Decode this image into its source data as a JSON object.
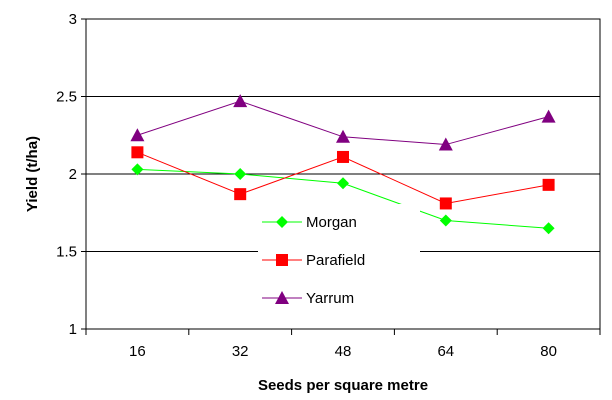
{
  "chart_data": {
    "type": "line",
    "categories": [
      "16",
      "32",
      "48",
      "64",
      "80"
    ],
    "series": [
      {
        "name": "Morgan",
        "values": [
          2.03,
          2.0,
          1.94,
          1.7,
          1.65
        ],
        "color": "#00ff00",
        "marker": "diamond"
      },
      {
        "name": "Parafield",
        "values": [
          2.14,
          1.87,
          2.11,
          1.81,
          1.93
        ],
        "color": "#ff0000",
        "marker": "square"
      },
      {
        "name": "Yarrum",
        "values": [
          2.25,
          2.47,
          2.24,
          2.19,
          2.37
        ],
        "color": "#800080",
        "marker": "triangle"
      }
    ],
    "xlabel": "Seeds per square metre",
    "ylabel": "Yield (t/ha)",
    "ylim": [
      1,
      3
    ],
    "yticks": [
      "1",
      "1.5",
      "2",
      "2.5",
      "3"
    ],
    "grid": "horizontal",
    "legend_position": "center"
  }
}
